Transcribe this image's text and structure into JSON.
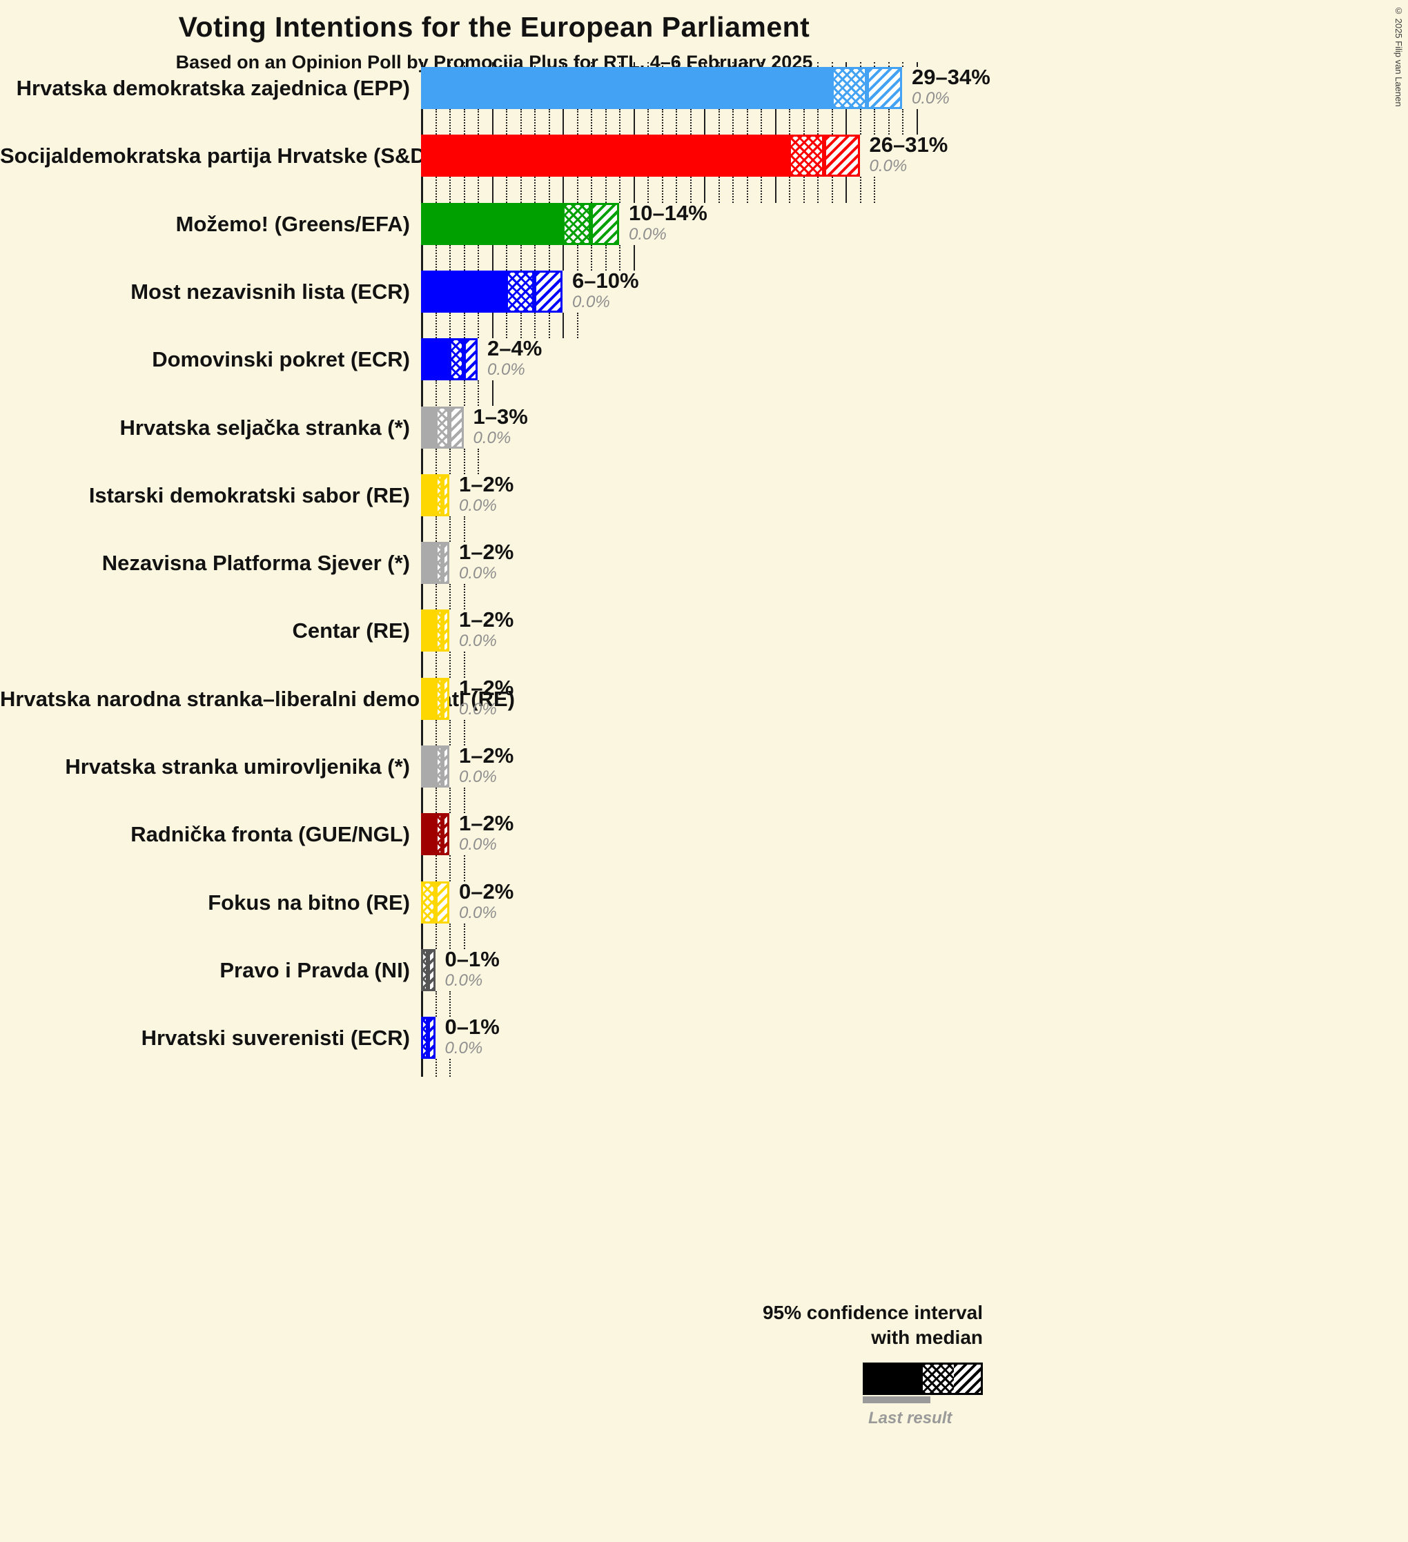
{
  "title": "Voting Intentions for the European Parliament",
  "subtitle": "Based on an Opinion Poll by Promocija Plus for RTL, 4–6 February 2025",
  "copyright": "© 2025 Filip van Laenen",
  "legend": {
    "confidence_line1": "95% confidence interval",
    "confidence_line2": "with median",
    "last_result_label": "Last result"
  },
  "chart_data": {
    "type": "bar",
    "orientation": "horizontal",
    "x_axis": {
      "min": 0,
      "max": 35,
      "tick_step": 1,
      "major_tick_step": 5,
      "unit": "%"
    },
    "note": "Each bar: solid = up to low bound of 95% CI, crosshatch = low to median, diagonal = median to high bound; gray value below bar label is last result.",
    "parties": [
      {
        "label": "Hrvatska demokratska zajednica (EPP)",
        "low": 29,
        "median": 31.5,
        "high": 34,
        "range_label": "29–34%",
        "last_result": 0.0,
        "last_result_label": "0.0%",
        "color": "#43A2F4"
      },
      {
        "label": "Socijaldemokratska partija Hrvatske (S&D)",
        "low": 26,
        "median": 28.5,
        "high": 31,
        "range_label": "26–31%",
        "last_result": 0.0,
        "last_result_label": "0.0%",
        "color": "#FF0000"
      },
      {
        "label": "Možemo! (Greens/EFA)",
        "low": 10,
        "median": 12,
        "high": 14,
        "range_label": "10–14%",
        "last_result": 0.0,
        "last_result_label": "0.0%",
        "color": "#00A000"
      },
      {
        "label": "Most nezavisnih lista (ECR)",
        "low": 6,
        "median": 8,
        "high": 10,
        "range_label": "6–10%",
        "last_result": 0.0,
        "last_result_label": "0.0%",
        "color": "#0000FF"
      },
      {
        "label": "Domovinski pokret (ECR)",
        "low": 2,
        "median": 3,
        "high": 4,
        "range_label": "2–4%",
        "last_result": 0.0,
        "last_result_label": "0.0%",
        "color": "#0000FF"
      },
      {
        "label": "Hrvatska seljačka stranka (*)",
        "low": 1,
        "median": 2,
        "high": 3,
        "range_label": "1–3%",
        "last_result": 0.0,
        "last_result_label": "0.0%",
        "color": "#AAAAAA"
      },
      {
        "label": "Istarski demokratski sabor (RE)",
        "low": 1,
        "median": 1.5,
        "high": 2,
        "range_label": "1–2%",
        "last_result": 0.0,
        "last_result_label": "0.0%",
        "color": "#FFD700"
      },
      {
        "label": "Nezavisna Platforma Sjever (*)",
        "low": 1,
        "median": 1.5,
        "high": 2,
        "range_label": "1–2%",
        "last_result": 0.0,
        "last_result_label": "0.0%",
        "color": "#AAAAAA"
      },
      {
        "label": "Centar (RE)",
        "low": 1,
        "median": 1.5,
        "high": 2,
        "range_label": "1–2%",
        "last_result": 0.0,
        "last_result_label": "0.0%",
        "color": "#FFD700"
      },
      {
        "label": "Hrvatska narodna stranka–liberalni demokrati (RE)",
        "low": 1,
        "median": 1.5,
        "high": 2,
        "range_label": "1–2%",
        "last_result": 0.0,
        "last_result_label": "0.0%",
        "color": "#FFD700"
      },
      {
        "label": "Hrvatska stranka umirovljenika (*)",
        "low": 1,
        "median": 1.5,
        "high": 2,
        "range_label": "1–2%",
        "last_result": 0.0,
        "last_result_label": "0.0%",
        "color": "#AAAAAA"
      },
      {
        "label": "Radnička fronta (GUE/NGL)",
        "low": 1,
        "median": 1.5,
        "high": 2,
        "range_label": "1–2%",
        "last_result": 0.0,
        "last_result_label": "0.0%",
        "color": "#A00000"
      },
      {
        "label": "Fokus na bitno (RE)",
        "low": 0,
        "median": 1,
        "high": 2,
        "range_label": "0–2%",
        "last_result": 0.0,
        "last_result_label": "0.0%",
        "color": "#FFD700"
      },
      {
        "label": "Pravo i Pravda (NI)",
        "low": 0,
        "median": 0.5,
        "high": 1,
        "range_label": "0–1%",
        "last_result": 0.0,
        "last_result_label": "0.0%",
        "color": "#555555"
      },
      {
        "label": "Hrvatski suverenisti (ECR)",
        "low": 0,
        "median": 0.5,
        "high": 1,
        "range_label": "0–1%",
        "last_result": 0.0,
        "last_result_label": "0.0%",
        "color": "#0000FF"
      }
    ]
  }
}
